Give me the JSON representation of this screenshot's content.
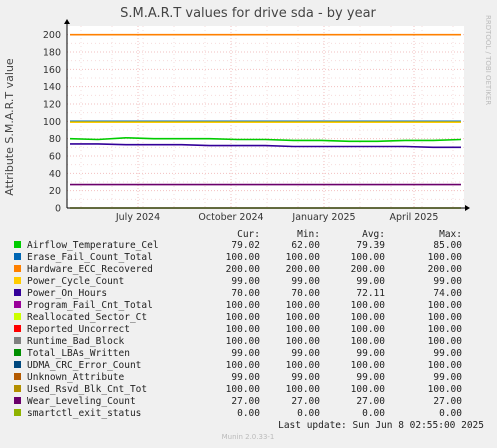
{
  "chart_data": {
    "type": "line",
    "title": "S.M.A.R.T values for drive sda - by year",
    "ylabel": "Attribute S.M.A.R.T value",
    "side_label": "RRDTOOL / TOBI OETIKER",
    "ylim": [
      0,
      210
    ],
    "y_ticks": [
      "0",
      "20",
      "40",
      "60",
      "80",
      "100",
      "120",
      "140",
      "160",
      "180",
      "200"
    ],
    "x_ticks": [
      "July 2024",
      "October 2024",
      "January 2025",
      "April 2025"
    ],
    "grid": true,
    "legend_headers": {
      "cur": "Cur:",
      "min": "Min:",
      "avg": "Avg:",
      "max": "Max:"
    },
    "series": [
      {
        "name": "Airflow_Temperature_Cel",
        "color": "#00cc00",
        "cur": "79.02",
        "min": "62.00",
        "avg": "79.39",
        "max": "85.00",
        "values": [
          80,
          79,
          81,
          80,
          80,
          80,
          79,
          79,
          78,
          78,
          77,
          77,
          78,
          78,
          79
        ]
      },
      {
        "name": "Erase_Fail_Count_Total",
        "color": "#0066b3",
        "cur": "100.00",
        "min": "100.00",
        "avg": "100.00",
        "max": "100.00",
        "values": [
          100,
          100,
          100,
          100,
          100,
          100,
          100,
          100,
          100,
          100,
          100,
          100,
          100,
          100,
          100
        ]
      },
      {
        "name": "Hardware_ECC_Recovered",
        "color": "#ff8000",
        "cur": "200.00",
        "min": "200.00",
        "avg": "200.00",
        "max": "200.00",
        "values": [
          200,
          200,
          200,
          200,
          200,
          200,
          200,
          200,
          200,
          200,
          200,
          200,
          200,
          200,
          200
        ]
      },
      {
        "name": "Power_Cycle_Count",
        "color": "#ffcc00",
        "cur": "99.00",
        "min": "99.00",
        "avg": "99.00",
        "max": "99.00",
        "values": [
          99,
          99,
          99,
          99,
          99,
          99,
          99,
          99,
          99,
          99,
          99,
          99,
          99,
          99,
          99
        ]
      },
      {
        "name": "Power_On_Hours",
        "color": "#330099",
        "cur": "70.00",
        "min": "70.00",
        "avg": "72.11",
        "max": "74.00",
        "values": [
          74,
          74,
          73,
          73,
          73,
          72,
          72,
          72,
          71,
          71,
          71,
          71,
          71,
          70,
          70
        ]
      },
      {
        "name": "Program_Fail_Cnt_Total",
        "color": "#990099",
        "cur": "100.00",
        "min": "100.00",
        "avg": "100.00",
        "max": "100.00",
        "values": [
          100,
          100,
          100,
          100,
          100,
          100,
          100,
          100,
          100,
          100,
          100,
          100,
          100,
          100,
          100
        ]
      },
      {
        "name": "Reallocated_Sector_Ct",
        "color": "#ccff00",
        "cur": "100.00",
        "min": "100.00",
        "avg": "100.00",
        "max": "100.00",
        "values": [
          100,
          100,
          100,
          100,
          100,
          100,
          100,
          100,
          100,
          100,
          100,
          100,
          100,
          100,
          100
        ]
      },
      {
        "name": "Reported_Uncorrect",
        "color": "#ff0000",
        "cur": "100.00",
        "min": "100.00",
        "avg": "100.00",
        "max": "100.00",
        "values": [
          100,
          100,
          100,
          100,
          100,
          100,
          100,
          100,
          100,
          100,
          100,
          100,
          100,
          100,
          100
        ]
      },
      {
        "name": "Runtime_Bad_Block",
        "color": "#808080",
        "cur": "100.00",
        "min": "100.00",
        "avg": "100.00",
        "max": "100.00",
        "values": [
          100,
          100,
          100,
          100,
          100,
          100,
          100,
          100,
          100,
          100,
          100,
          100,
          100,
          100,
          100
        ]
      },
      {
        "name": "Total_LBAs_Written",
        "color": "#008f00",
        "cur": "99.00",
        "min": "99.00",
        "avg": "99.00",
        "max": "99.00",
        "values": [
          99,
          99,
          99,
          99,
          99,
          99,
          99,
          99,
          99,
          99,
          99,
          99,
          99,
          99,
          99
        ]
      },
      {
        "name": "UDMA_CRC_Error_Count",
        "color": "#00487d",
        "cur": "100.00",
        "min": "100.00",
        "avg": "100.00",
        "max": "100.00",
        "values": [
          100,
          100,
          100,
          100,
          100,
          100,
          100,
          100,
          100,
          100,
          100,
          100,
          100,
          100,
          100
        ]
      },
      {
        "name": "Unknown_Attribute",
        "color": "#b35a00",
        "cur": "99.00",
        "min": "99.00",
        "avg": "99.00",
        "max": "99.00",
        "values": [
          99,
          99,
          99,
          99,
          99,
          99,
          99,
          99,
          99,
          99,
          99,
          99,
          99,
          99,
          99
        ]
      },
      {
        "name": "Used_Rsvd_Blk_Cnt_Tot",
        "color": "#b38f00",
        "cur": "100.00",
        "min": "100.00",
        "avg": "100.00",
        "max": "100.00",
        "values": [
          100,
          100,
          100,
          100,
          100,
          100,
          100,
          100,
          100,
          100,
          100,
          100,
          100,
          100,
          100
        ]
      },
      {
        "name": "Wear_Leveling_Count",
        "color": "#6b006b",
        "cur": "27.00",
        "min": "27.00",
        "avg": "27.00",
        "max": "27.00",
        "values": [
          27,
          27,
          27,
          27,
          27,
          27,
          27,
          27,
          27,
          27,
          27,
          27,
          27,
          27,
          27
        ]
      },
      {
        "name": "smartctl_exit_status",
        "color": "#8fb300",
        "cur": "0.00",
        "min": "0.00",
        "avg": "0.00",
        "max": "0.00",
        "values": [
          0,
          0,
          0,
          0,
          0,
          0,
          0,
          0,
          0,
          0,
          0,
          0,
          0,
          0,
          0
        ]
      }
    ],
    "last_update": "Last update:  Sun Jun  8 02:55:00 2025",
    "footer": "Munin 2.0.33-1"
  }
}
